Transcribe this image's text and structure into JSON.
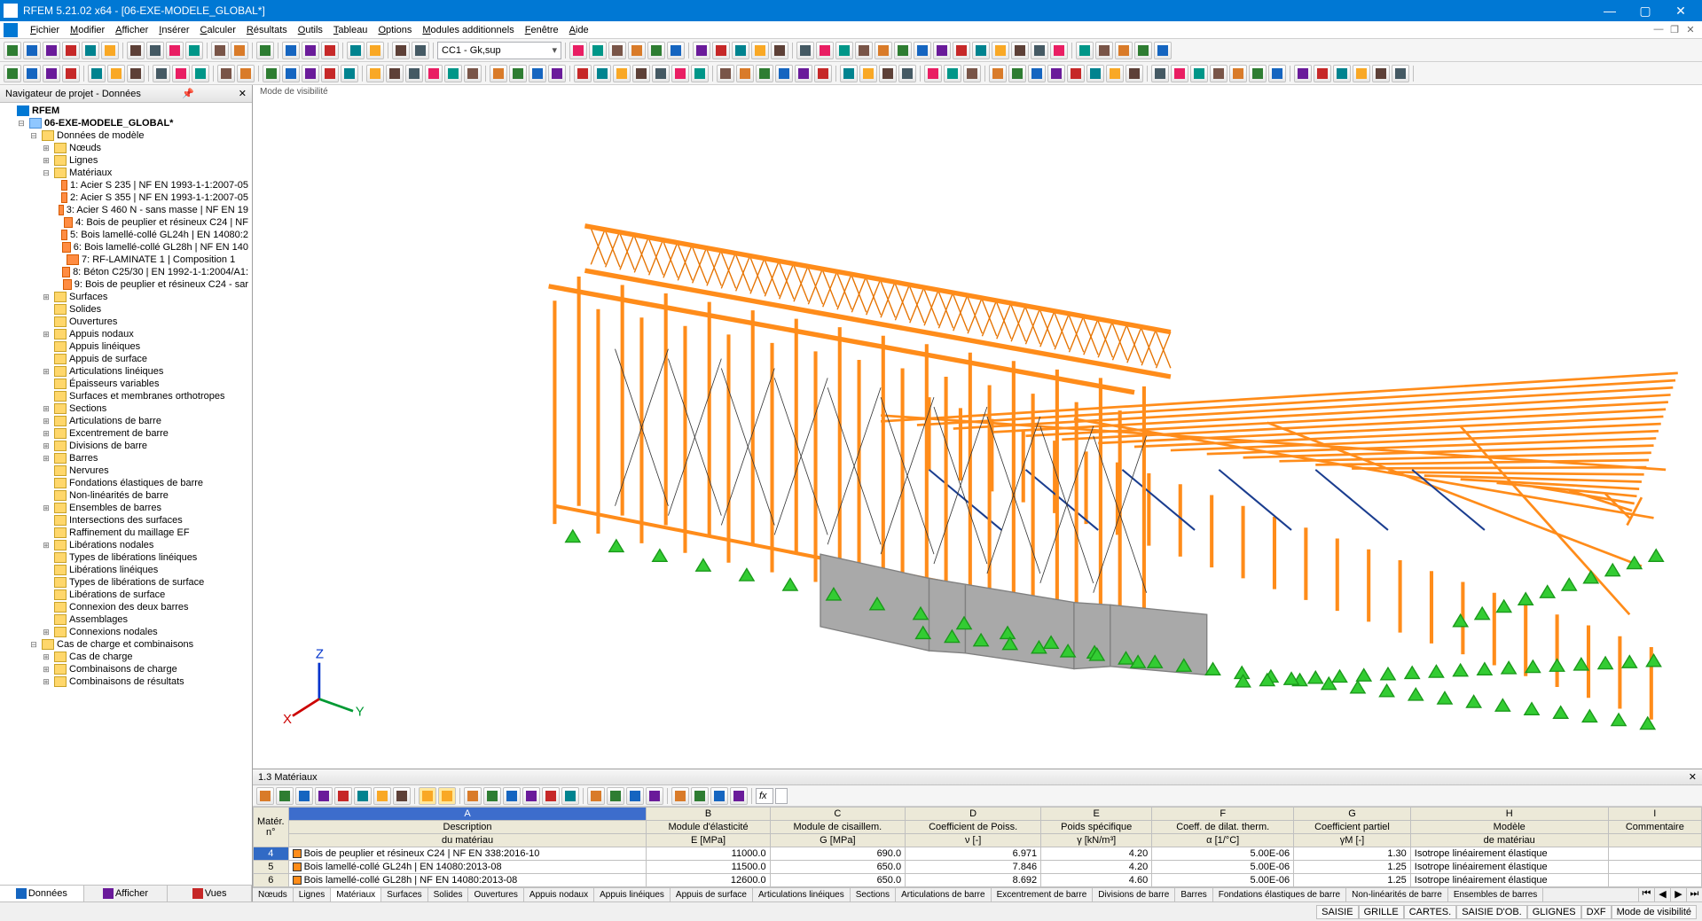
{
  "window": {
    "title": "RFEM 5.21.02 x64 - [06-EXE-MODELE_GLOBAL*]"
  },
  "menu": {
    "items": [
      "Fichier",
      "Modifier",
      "Afficher",
      "Insérer",
      "Calculer",
      "Résultats",
      "Outils",
      "Tableau",
      "Options",
      "Modules additionnels",
      "Fenêtre",
      "Aide"
    ]
  },
  "toolbar1_combo": "CC1 - Gk,sup",
  "sidebar": {
    "title": "Navigateur de projet - Données",
    "root": "RFEM",
    "model": "06-EXE-MODELE_GLOBAL*",
    "model_data": "Données de modèle",
    "nodes": [
      {
        "label": "Nœuds",
        "exp": "+",
        "ic": "ic-folder",
        "indent": 3
      },
      {
        "label": "Lignes",
        "exp": "+",
        "ic": "ic-folder",
        "indent": 3
      },
      {
        "label": "Matériaux",
        "exp": "-",
        "ic": "ic-folder",
        "indent": 3
      },
      {
        "label": "1: Acier S 235 | NF EN 1993-1-1:2007-05",
        "exp": "",
        "ic": "ic-mat",
        "indent": 4
      },
      {
        "label": "2: Acier S 355 | NF EN 1993-1-1:2007-05",
        "exp": "",
        "ic": "ic-mat",
        "indent": 4
      },
      {
        "label": "3: Acier S 460 N - sans masse | NF EN 19",
        "exp": "",
        "ic": "ic-mat",
        "indent": 4
      },
      {
        "label": "4: Bois de peuplier et résineux C24 | NF",
        "exp": "",
        "ic": "ic-mat",
        "indent": 4
      },
      {
        "label": "5: Bois lamellé-collé GL24h | EN 14080:2",
        "exp": "",
        "ic": "ic-mat",
        "indent": 4
      },
      {
        "label": "6: Bois lamellé-collé GL28h | NF EN 140",
        "exp": "",
        "ic": "ic-mat",
        "indent": 4
      },
      {
        "label": "7: RF-LAMINATE 1 | Composition 1",
        "exp": "",
        "ic": "ic-mat",
        "indent": 4
      },
      {
        "label": "8: Béton C25/30 | EN 1992-1-1:2004/A1:",
        "exp": "",
        "ic": "ic-mat",
        "indent": 4
      },
      {
        "label": "9: Bois de peuplier et résineux C24 - sar",
        "exp": "",
        "ic": "ic-mat",
        "indent": 4
      },
      {
        "label": "Surfaces",
        "exp": "+",
        "ic": "ic-folder",
        "indent": 3
      },
      {
        "label": "Solides",
        "exp": "",
        "ic": "ic-folder",
        "indent": 3
      },
      {
        "label": "Ouvertures",
        "exp": "",
        "ic": "ic-folder",
        "indent": 3
      },
      {
        "label": "Appuis nodaux",
        "exp": "+",
        "ic": "ic-folder",
        "indent": 3
      },
      {
        "label": "Appuis linéiques",
        "exp": "",
        "ic": "ic-folder",
        "indent": 3
      },
      {
        "label": "Appuis de surface",
        "exp": "",
        "ic": "ic-folder",
        "indent": 3
      },
      {
        "label": "Articulations linéiques",
        "exp": "+",
        "ic": "ic-folder",
        "indent": 3
      },
      {
        "label": "Épaisseurs variables",
        "exp": "",
        "ic": "ic-folder",
        "indent": 3
      },
      {
        "label": "Surfaces et membranes orthotropes",
        "exp": "",
        "ic": "ic-folder",
        "indent": 3
      },
      {
        "label": "Sections",
        "exp": "+",
        "ic": "ic-folder",
        "indent": 3
      },
      {
        "label": "Articulations de barre",
        "exp": "+",
        "ic": "ic-folder",
        "indent": 3
      },
      {
        "label": "Excentrement de barre",
        "exp": "+",
        "ic": "ic-folder",
        "indent": 3
      },
      {
        "label": "Divisions de barre",
        "exp": "+",
        "ic": "ic-folder",
        "indent": 3
      },
      {
        "label": "Barres",
        "exp": "+",
        "ic": "ic-folder",
        "indent": 3
      },
      {
        "label": "Nervures",
        "exp": "",
        "ic": "ic-folder",
        "indent": 3
      },
      {
        "label": "Fondations élastiques de barre",
        "exp": "",
        "ic": "ic-folder",
        "indent": 3
      },
      {
        "label": "Non-linéarités de barre",
        "exp": "",
        "ic": "ic-folder",
        "indent": 3
      },
      {
        "label": "Ensembles de barres",
        "exp": "+",
        "ic": "ic-folder",
        "indent": 3
      },
      {
        "label": "Intersections des surfaces",
        "exp": "",
        "ic": "ic-folder",
        "indent": 3
      },
      {
        "label": "Raffinement du maillage EF",
        "exp": "",
        "ic": "ic-folder",
        "indent": 3
      },
      {
        "label": "Libérations nodales",
        "exp": "+",
        "ic": "ic-folder",
        "indent": 3
      },
      {
        "label": "Types de libérations linéiques",
        "exp": "",
        "ic": "ic-folder",
        "indent": 3
      },
      {
        "label": "Libérations linéiques",
        "exp": "",
        "ic": "ic-folder",
        "indent": 3
      },
      {
        "label": "Types de libérations de surface",
        "exp": "",
        "ic": "ic-folder",
        "indent": 3
      },
      {
        "label": "Libérations de surface",
        "exp": "",
        "ic": "ic-folder",
        "indent": 3
      },
      {
        "label": "Connexion des deux barres",
        "exp": "",
        "ic": "ic-folder",
        "indent": 3
      },
      {
        "label": "Assemblages",
        "exp": "",
        "ic": "ic-folder",
        "indent": 3
      },
      {
        "label": "Connexions nodales",
        "exp": "+",
        "ic": "ic-folder",
        "indent": 3
      }
    ],
    "load_cases_root": "Cas de charge et combinaisons",
    "load_cases": [
      {
        "label": "Cas de charge",
        "exp": "+",
        "ic": "ic-folder",
        "indent": 3
      },
      {
        "label": "Combinaisons de charge",
        "exp": "+",
        "ic": "ic-folder",
        "indent": 3
      },
      {
        "label": "Combinaisons de résultats",
        "exp": "+",
        "ic": "ic-folder",
        "indent": 3
      }
    ],
    "tabs": [
      "Données",
      "Afficher",
      "Vues"
    ]
  },
  "viewport": {
    "mode_label": "Mode de visibilité",
    "axes": {
      "x": "X",
      "y": "Y",
      "z": "Z"
    },
    "colors": {
      "beam": "#ff8c1a",
      "truss": "#e67300",
      "support": "#33cc33",
      "wall": "#a9a9a9",
      "brace": "#1a3d8f",
      "background": "#ffffff"
    }
  },
  "bottom": {
    "title": "1.3 Matériaux",
    "col_letters": [
      "A",
      "B",
      "C",
      "D",
      "E",
      "F",
      "G",
      "H",
      "I"
    ],
    "corner": "Matér.\nn°",
    "headers_r1": [
      "Description",
      "Module d'élasticité",
      "Module de cisaillem.",
      "Coefficient de Poiss.",
      "Poids spécifique",
      "Coeff. de dilat. therm.",
      "Coefficient partiel",
      "Modèle",
      "Commentaire"
    ],
    "headers_r2": [
      "du matériau",
      "E [MPa]",
      "G [MPa]",
      "ν [-]",
      "γ [kN/m³]",
      "α [1/°C]",
      "γM [-]",
      "de matériau",
      ""
    ],
    "rows": [
      {
        "n": "4",
        "desc": "Bois de peuplier et résineux C24 | NF EN 338:2016-10",
        "E": "11000.0",
        "G": "690.0",
        "nu": "6.971",
        "gamma": "4.20",
        "alpha": "5.00E-06",
        "gm": "1.30",
        "model": "Isotrope linéairement élastique",
        "comm": "",
        "sel": true
      },
      {
        "n": "5",
        "desc": "Bois lamellé-collé GL24h | EN 14080:2013-08",
        "E": "11500.0",
        "G": "650.0",
        "nu": "7.846",
        "gamma": "4.20",
        "alpha": "5.00E-06",
        "gm": "1.25",
        "model": "Isotrope linéairement élastique",
        "comm": ""
      },
      {
        "n": "6",
        "desc": "Bois lamellé-collé GL28h | NF EN 14080:2013-08",
        "E": "12600.0",
        "G": "650.0",
        "nu": "8.692",
        "gamma": "4.60",
        "alpha": "5.00E-06",
        "gm": "1.25",
        "model": "Isotrope linéairement élastique",
        "comm": ""
      }
    ],
    "tabs": [
      "Nœuds",
      "Lignes",
      "Matériaux",
      "Surfaces",
      "Solides",
      "Ouvertures",
      "Appuis nodaux",
      "Appuis linéiques",
      "Appuis de surface",
      "Articulations linéiques",
      "Sections",
      "Articulations de barre",
      "Excentrement de barre",
      "Divisions de barre",
      "Barres",
      "Fondations élastiques de barre",
      "Non-linéarités de barre",
      "Ensembles de barres"
    ],
    "active_tab": 2
  },
  "status": {
    "cells": [
      "SAISIE",
      "GRILLE",
      "CARTES.",
      "SAISIE D'OB.",
      "GLIGNES",
      "DXF",
      "Mode de visibilité"
    ]
  }
}
